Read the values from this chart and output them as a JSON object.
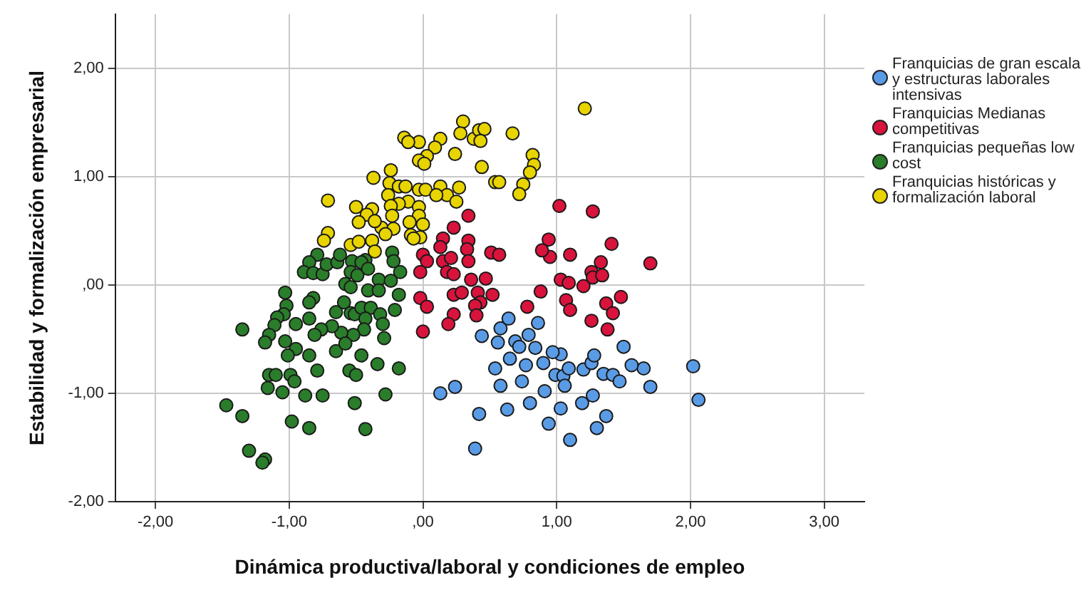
{
  "chart_data": {
    "type": "scatter",
    "xlabel": "Dinámica productiva/laboral y condiciones de empleo",
    "ylabel": "Estabilidad y formalización empresarial",
    "xlim": [
      -2.3,
      3.3
    ],
    "ylim": [
      -2,
      2.5
    ],
    "xticks": [
      {
        "value": -2,
        "label": "-2,00"
      },
      {
        "value": -1,
        "label": "-1,00"
      },
      {
        "value": 0,
        "label": ",00"
      },
      {
        "value": 1,
        "label": "1,00"
      },
      {
        "value": 2,
        "label": "2,00"
      },
      {
        "value": 3,
        "label": "3,00"
      }
    ],
    "yticks": [
      {
        "value": -2,
        "label": "-2,00"
      },
      {
        "value": -1,
        "label": "-1,00"
      },
      {
        "value": 0,
        "label": ",00"
      },
      {
        "value": 1,
        "label": "1,00"
      },
      {
        "value": 2,
        "label": "2,00"
      }
    ],
    "grid": true,
    "legend": "right",
    "marker": "circle",
    "series": [
      {
        "name": "Franquicias de gran escala y estructuras laborales intensivas",
        "color": "#5a9be6",
        "x": [
          0.44,
          0.56,
          0.58,
          0.64,
          0.86,
          0.79,
          0.84,
          0.65,
          0.77,
          0.54,
          0.74,
          0.58,
          0.24,
          0.13,
          0.91,
          0.8,
          0.63,
          0.42,
          0.39,
          0.94,
          1.03,
          1.1,
          1.19,
          1.27,
          1.3,
          1.37,
          0.99,
          1.05,
          1.06,
          1.03,
          0.97,
          1.2,
          1.26,
          1.28,
          1.35,
          1.42,
          1.47,
          1.5,
          1.65,
          1.7,
          2.02,
          2.06,
          1.56,
          0.69,
          0.72,
          0.9,
          1.09
        ],
        "values": [
          -0.47,
          -0.53,
          -0.4,
          -0.31,
          -0.35,
          -0.46,
          -0.58,
          -0.68,
          -0.74,
          -0.77,
          -0.89,
          -0.93,
          -0.94,
          -1.0,
          -0.98,
          -1.09,
          -1.15,
          -1.19,
          -1.51,
          -1.28,
          -1.14,
          -1.43,
          -1.09,
          -1.02,
          -1.32,
          -1.21,
          -0.83,
          -0.84,
          -0.93,
          -0.64,
          -0.62,
          -0.78,
          -0.72,
          -0.65,
          -0.82,
          -0.83,
          -0.89,
          -0.57,
          -0.77,
          -0.94,
          -0.75,
          -1.06,
          -0.74,
          -0.52,
          -0.57,
          -0.72,
          -0.77
        ]
      },
      {
        "name": "Franquicias Medianas competitivas",
        "color": "#d8133c",
        "x": [
          0.34,
          0.23,
          0.15,
          0.13,
          0.34,
          0.33,
          0.34,
          0.0,
          0.03,
          -0.02,
          0.15,
          0.21,
          0.18,
          0.23,
          0.36,
          0.47,
          0.51,
          0.57,
          0.52,
          0.41,
          0.43,
          0.39,
          0.4,
          0.23,
          0.29,
          -0.02,
          0.03,
          0.23,
          0.19,
          0.0,
          0.78,
          0.88,
          1.02,
          1.27,
          0.94,
          0.95,
          1.1,
          1.41,
          1.33,
          1.03,
          1.09,
          1.2,
          1.26,
          1.27,
          1.34,
          1.07,
          1.1,
          1.48,
          1.37,
          1.42,
          1.26,
          1.38,
          1.7,
          0.89
        ],
        "values": [
          0.64,
          0.53,
          0.43,
          0.35,
          0.41,
          0.33,
          0.22,
          0.28,
          0.22,
          0.12,
          0.22,
          0.25,
          0.12,
          0.1,
          0.05,
          0.06,
          0.3,
          0.28,
          -0.09,
          -0.07,
          -0.16,
          -0.19,
          -0.28,
          -0.09,
          -0.07,
          -0.12,
          -0.2,
          -0.27,
          -0.36,
          -0.43,
          -0.2,
          -0.06,
          0.73,
          0.68,
          0.42,
          0.26,
          0.28,
          0.38,
          0.21,
          0.05,
          0.02,
          -0.01,
          0.12,
          0.07,
          0.09,
          -0.14,
          -0.23,
          -0.11,
          -0.17,
          -0.26,
          -0.33,
          -0.41,
          0.2,
          0.32
        ]
      },
      {
        "name": "Franquicias pequeñas low cost",
        "color": "#2a7d2a",
        "x": [
          -0.79,
          -0.85,
          -0.89,
          -0.82,
          -0.75,
          -0.72,
          -0.64,
          -0.62,
          -0.53,
          -0.54,
          -0.49,
          -0.43,
          -0.46,
          -0.41,
          -0.23,
          -0.22,
          -0.17,
          -0.58,
          -0.54,
          -0.33,
          -0.24,
          -0.18,
          -0.41,
          -0.33,
          -1.03,
          -0.82,
          -0.85,
          -1.02,
          -1.04,
          -1.09,
          -1.11,
          -0.95,
          -0.85,
          -0.65,
          -0.59,
          -0.54,
          -0.51,
          -0.46,
          -0.39,
          -0.32,
          -0.21,
          -0.3,
          -0.43,
          -0.44,
          -0.52,
          -0.61,
          -0.68,
          -0.76,
          -0.81,
          -1.35,
          -1.15,
          -1.18,
          -1.03,
          -0.95,
          -1.01,
          -0.85,
          -0.65,
          -0.58,
          -0.29,
          -0.46,
          -0.34,
          -0.18,
          -0.55,
          -0.5,
          -0.79,
          -1.15,
          -1.1,
          -0.99,
          -0.96,
          -1.16,
          -1.05,
          -0.88,
          -0.75,
          -0.51,
          -0.28,
          -1.47,
          -1.35,
          -0.98,
          -0.85,
          -0.43,
          -1.3,
          -1.18,
          -1.2
        ],
        "values": [
          0.28,
          0.21,
          0.12,
          0.11,
          0.1,
          0.19,
          0.21,
          0.28,
          0.22,
          0.12,
          0.09,
          0.23,
          0.21,
          0.15,
          0.3,
          0.22,
          0.12,
          0.01,
          -0.02,
          0.05,
          0.04,
          -0.09,
          -0.05,
          -0.05,
          -0.07,
          -0.12,
          -0.16,
          -0.19,
          -0.27,
          -0.3,
          -0.37,
          -0.36,
          -0.31,
          -0.25,
          -0.16,
          -0.26,
          -0.27,
          -0.21,
          -0.21,
          -0.27,
          -0.23,
          -0.36,
          -0.31,
          -0.41,
          -0.46,
          -0.44,
          -0.38,
          -0.41,
          -0.46,
          -0.41,
          -0.46,
          -0.53,
          -0.52,
          -0.59,
          -0.65,
          -0.65,
          -0.61,
          -0.54,
          -0.49,
          -0.65,
          -0.73,
          -0.77,
          -0.79,
          -0.83,
          -0.79,
          -0.83,
          -0.83,
          -0.83,
          -0.89,
          -0.95,
          -0.99,
          -1.02,
          -1.02,
          -1.09,
          -1.01,
          -1.11,
          -1.21,
          -1.26,
          -1.32,
          -1.33,
          -1.53,
          -1.61,
          -1.64
        ]
      },
      {
        "name": "Franquicias históricas y formalización laboral",
        "color": "#e8d400",
        "x": [
          0.3,
          0.28,
          0.38,
          0.42,
          0.46,
          0.43,
          0.67,
          1.21,
          0.13,
          0.09,
          0.24,
          0.03,
          -0.03,
          0.01,
          -0.03,
          -0.14,
          -0.11,
          0.44,
          0.54,
          0.57,
          0.82,
          0.83,
          0.8,
          0.75,
          0.72,
          -0.24,
          -0.37,
          -0.25,
          -0.18,
          -0.13,
          -0.03,
          0.02,
          0.13,
          0.27,
          0.18,
          0.1,
          0.25,
          -0.11,
          -0.18,
          -0.03,
          -0.03,
          -0.1,
          0.0,
          -0.26,
          -0.24,
          -0.23,
          -0.31,
          -0.22,
          -0.09,
          -0.02,
          -0.38,
          -0.42,
          -0.5,
          -0.48,
          -0.36,
          -0.28,
          -0.71,
          -0.71,
          -0.74,
          -0.54,
          -0.38,
          -0.36,
          -0.48,
          -0.07
        ],
        "values": [
          1.51,
          1.4,
          1.35,
          1.43,
          1.44,
          1.33,
          1.4,
          1.63,
          1.35,
          1.27,
          1.21,
          1.19,
          1.15,
          1.12,
          1.32,
          1.36,
          1.32,
          1.09,
          0.95,
          0.95,
          1.2,
          1.11,
          1.04,
          0.93,
          0.84,
          1.06,
          0.99,
          0.94,
          0.91,
          0.91,
          0.88,
          0.88,
          0.91,
          0.9,
          0.83,
          0.83,
          0.77,
          0.77,
          0.75,
          0.72,
          0.64,
          0.58,
          0.56,
          0.83,
          0.73,
          0.64,
          0.53,
          0.52,
          0.46,
          0.44,
          0.7,
          0.65,
          0.72,
          0.58,
          0.59,
          0.47,
          0.78,
          0.48,
          0.41,
          0.37,
          0.41,
          0.31,
          0.4,
          0.43
        ]
      }
    ]
  }
}
